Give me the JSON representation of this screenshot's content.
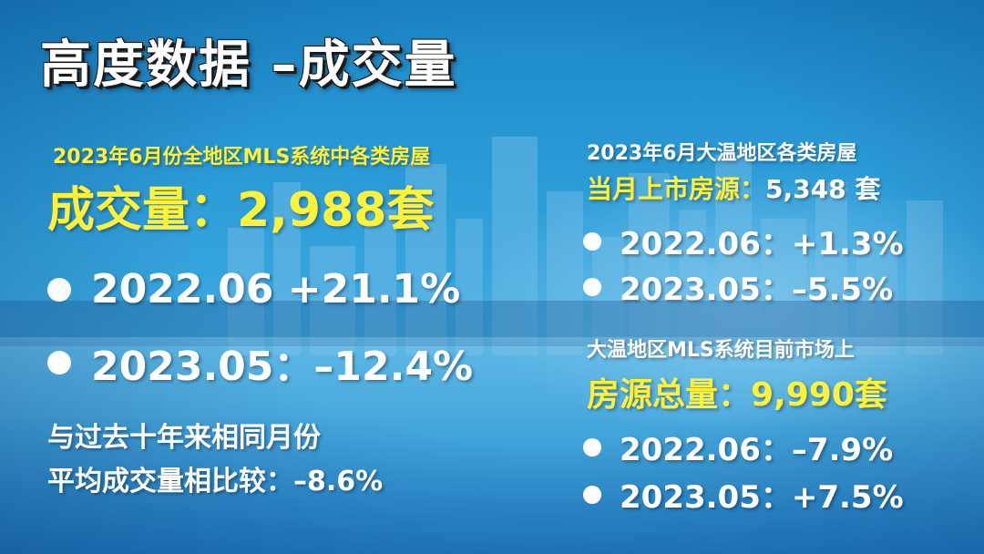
{
  "title": "高度数据 –成交量",
  "left": {
    "subtitle": "2023年6月份全地区MLS系统中各类房屋",
    "headline": "成交量：2,988套",
    "bullets": [
      {
        "label": "2022.06 +21.1%"
      },
      {
        "label": "2023.05：–12.4%"
      }
    ],
    "comparison_line1": "与过去十年来相同月份",
    "comparison_line2": "平均成交量相比较：–8.6%"
  },
  "right_top": {
    "subtitle": "2023年6月大温地区各类房屋",
    "headline_label": "当月上市房源：",
    "headline_value": "5,348 套",
    "bullets": [
      {
        "label": "2022.06：+1.3%"
      },
      {
        "label": "2023.05：–5.5%"
      }
    ]
  },
  "right_bottom": {
    "subtitle": "大温地区MLS系统目前市场上",
    "headline": "房源总量：9,990套",
    "bullets": [
      {
        "label": "2022.06：–7.9%"
      },
      {
        "label": "2023.05：+7.5%"
      }
    ]
  },
  "colors": {
    "accent_yellow": "#fff23a",
    "text_white": "#ffffff",
    "background_blue": "#2a9ad6"
  },
  "icons": [
    "bullet-dot-icon",
    "city-skyline-background"
  ]
}
